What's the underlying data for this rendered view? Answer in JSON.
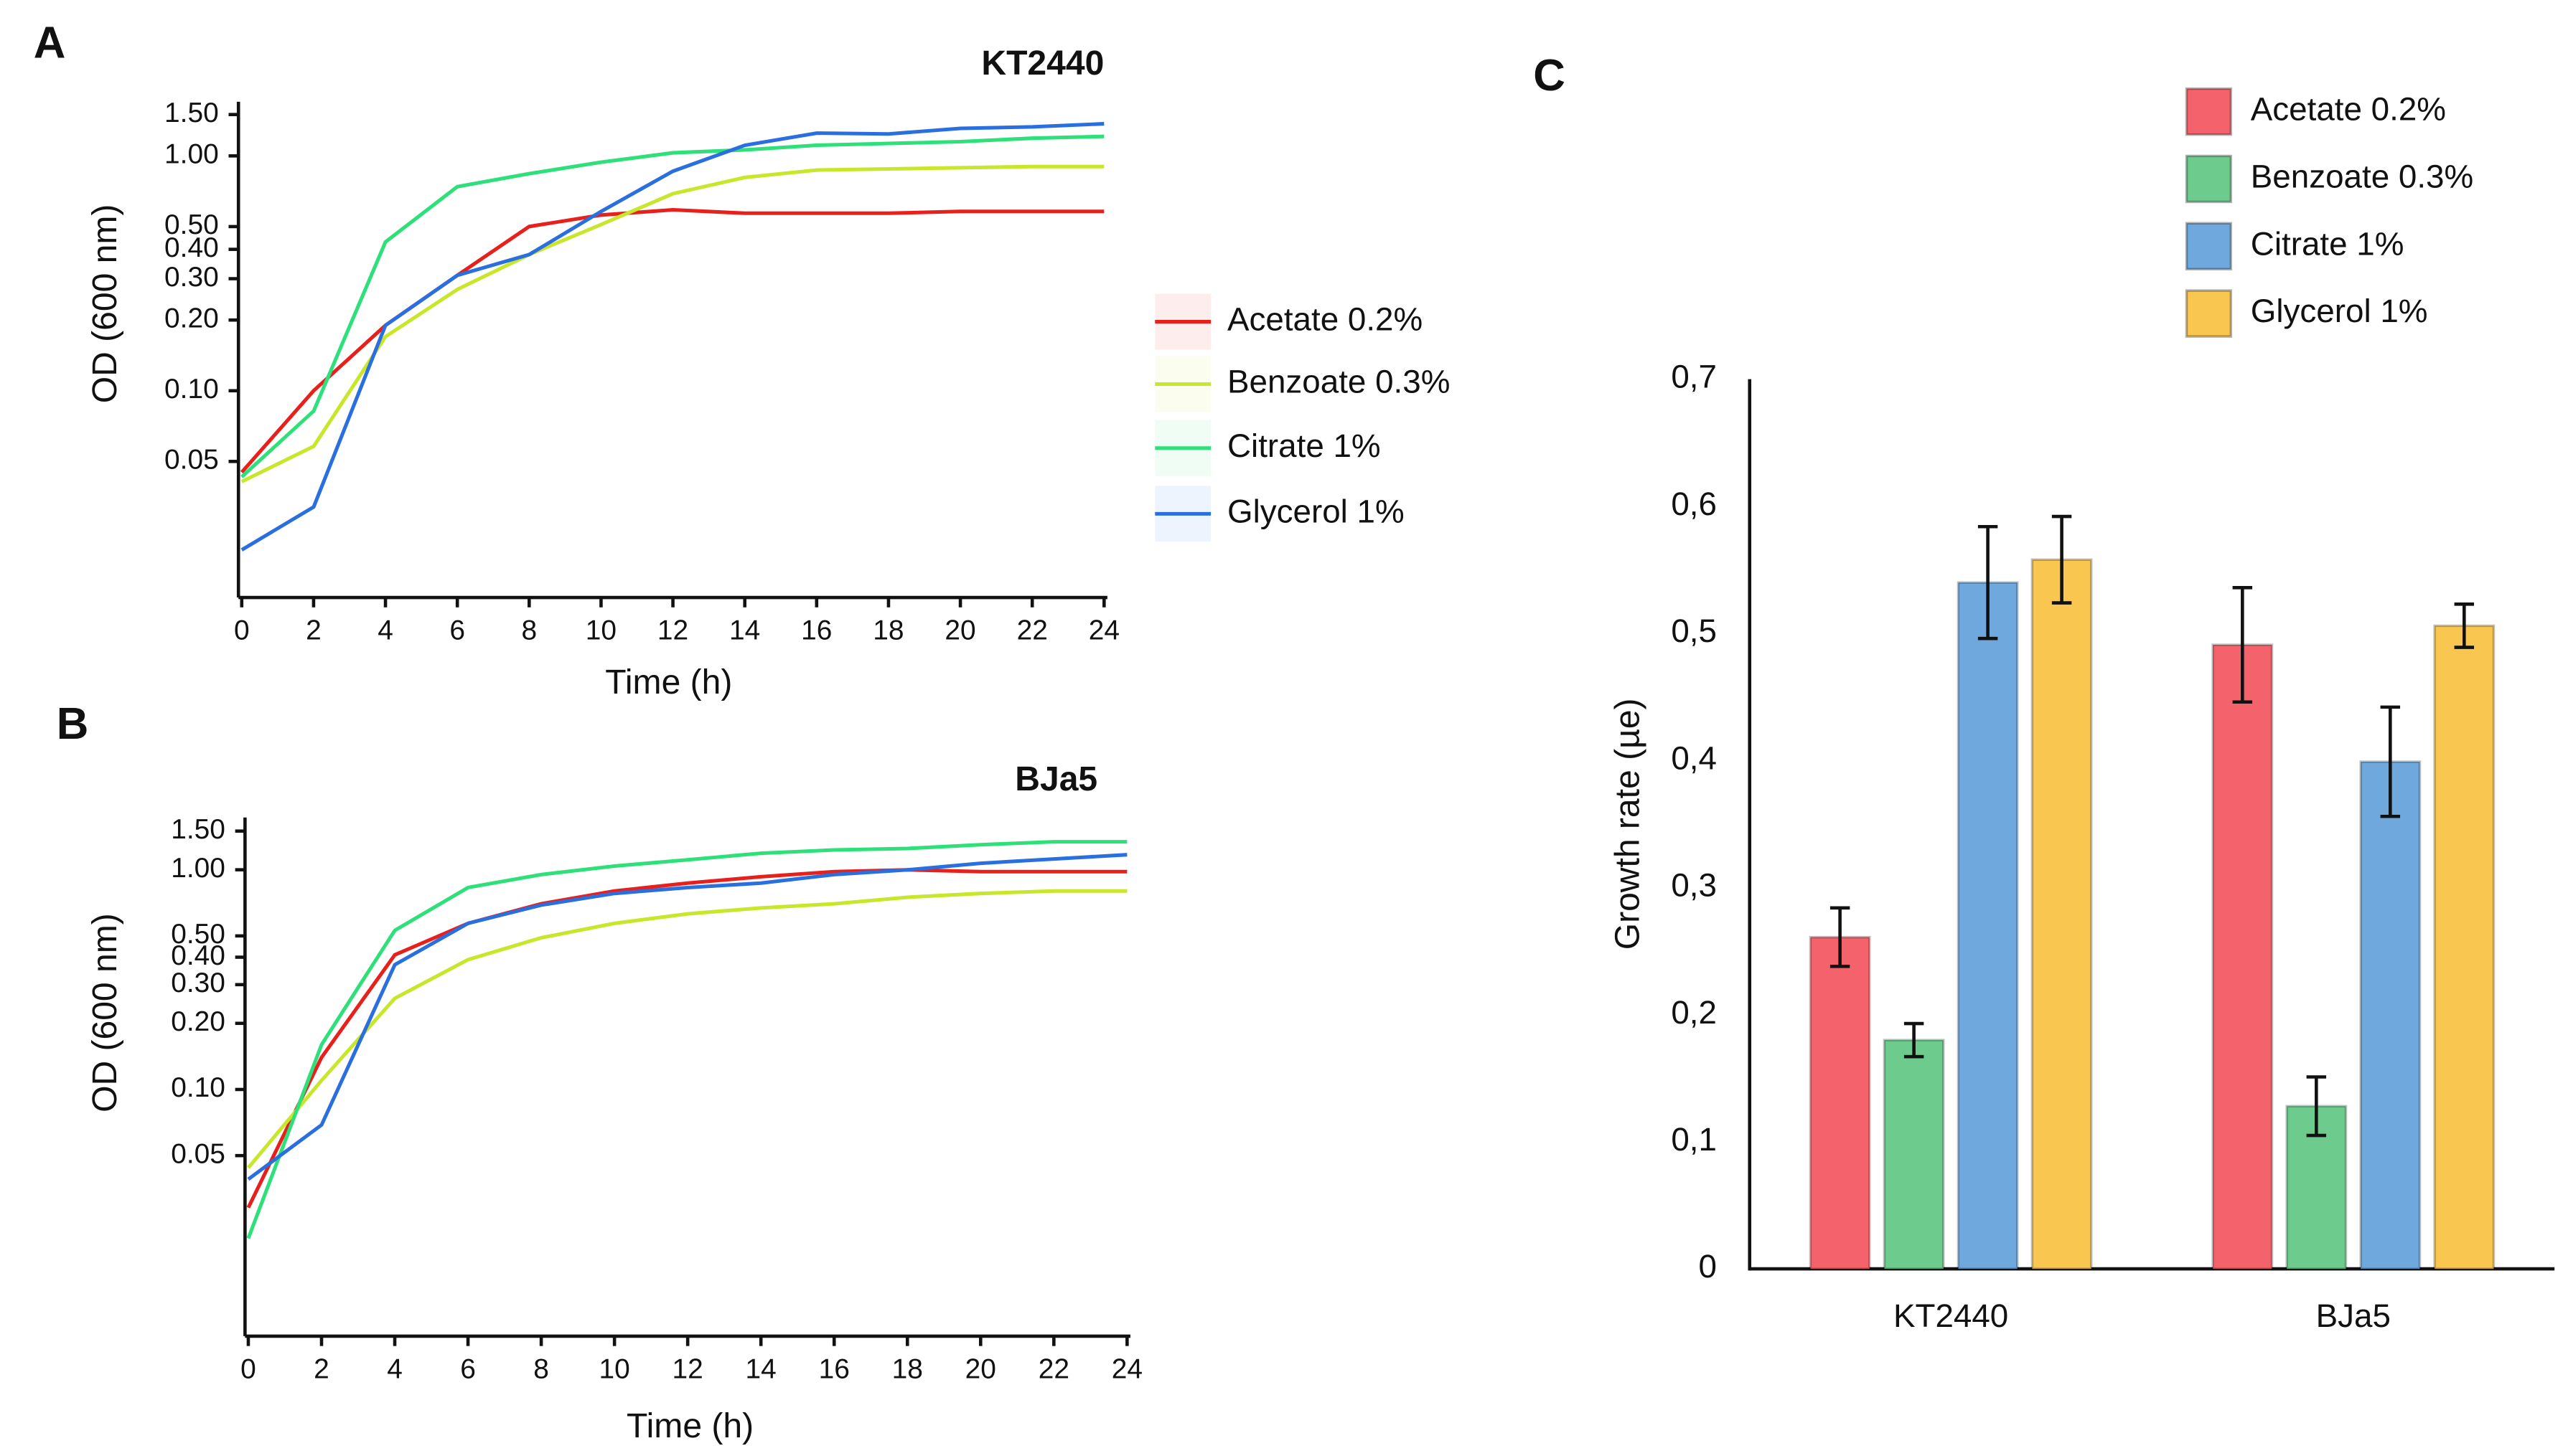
{
  "chart_data": [
    {
      "type": "line",
      "panel_label": "A",
      "title": "KT2440",
      "xlabel": "Time (h)",
      "ylabel": "OD (600 nm)",
      "log_scale": true,
      "legend": true,
      "x": [
        0,
        2,
        4,
        6,
        8,
        10,
        12,
        14,
        16,
        18,
        20,
        22,
        24
      ],
      "xlim": [
        0,
        24
      ],
      "xticks": [
        0,
        2,
        4,
        6,
        8,
        10,
        12,
        14,
        16,
        18,
        20,
        22,
        24
      ],
      "ylim": [
        0.0136,
        1.7
      ],
      "yticks": [
        {
          "value": 0.05,
          "label": "0.05"
        },
        {
          "value": 0.1,
          "label": "0.10"
        },
        {
          "value": 0.2,
          "label": "0.20"
        },
        {
          "value": 0.3,
          "label": "0.30"
        },
        {
          "value": 0.4,
          "label": "0.40"
        },
        {
          "value": 0.5,
          "label": "0.50"
        },
        {
          "value": 1,
          "label": "1.00"
        },
        {
          "value": 1.5,
          "label": "1.50"
        }
      ],
      "series": [
        {
          "name": "Acetate 0.2%",
          "color": "#e8201c",
          "values": [
            0.045,
            0.1,
            0.19,
            0.31,
            0.5,
            0.56,
            0.59,
            0.57,
            0.57,
            0.57,
            0.58,
            0.58,
            0.58
          ]
        },
        {
          "name": "Benzoate 0.3%",
          "color": "#c8e62a",
          "values": [
            0.041,
            0.058,
            0.17,
            0.27,
            0.38,
            0.51,
            0.69,
            0.81,
            0.87,
            0.88,
            0.89,
            0.9,
            0.9
          ]
        },
        {
          "name": "Citrate 1%",
          "color": "#2ee07a",
          "values": [
            0.043,
            0.082,
            0.43,
            0.74,
            0.84,
            0.94,
            1.03,
            1.06,
            1.11,
            1.13,
            1.15,
            1.19,
            1.21
          ]
        },
        {
          "name": "Glycerol 1%",
          "color": "#2a6fe0",
          "values": [
            0.021,
            0.032,
            0.19,
            0.31,
            0.38,
            0.58,
            0.86,
            1.11,
            1.25,
            1.24,
            1.31,
            1.33,
            1.37
          ]
        }
      ]
    },
    {
      "type": "line",
      "panel_label": "B",
      "title": "BJa5",
      "xlabel": "Time (h)",
      "ylabel": "OD (600 nm)",
      "log_scale": true,
      "legend": false,
      "x": [
        0,
        2,
        4,
        6,
        8,
        10,
        12,
        14,
        16,
        18,
        20,
        22,
        24
      ],
      "xlim": [
        0,
        24
      ],
      "xticks": [
        0,
        2,
        4,
        6,
        8,
        10,
        12,
        14,
        16,
        18,
        20,
        22,
        24
      ],
      "ylim": [
        0.0078,
        1.73
      ],
      "yticks": [
        {
          "value": 0.05,
          "label": "0.05"
        },
        {
          "value": 0.1,
          "label": "0.10"
        },
        {
          "value": 0.2,
          "label": "0.20"
        },
        {
          "value": 0.3,
          "label": "0.30"
        },
        {
          "value": 0.4,
          "label": "0.40"
        },
        {
          "value": 0.5,
          "label": "0.50"
        },
        {
          "value": 1,
          "label": "1.00"
        },
        {
          "value": 1.5,
          "label": "1.50"
        }
      ],
      "series": [
        {
          "color": "#e8201c",
          "values": [
            0.029,
            0.14,
            0.41,
            0.57,
            0.7,
            0.8,
            0.87,
            0.93,
            0.98,
            1.0,
            0.98,
            0.98,
            0.98
          ]
        },
        {
          "color": "#c8e62a",
          "values": [
            0.044,
            0.11,
            0.26,
            0.39,
            0.49,
            0.57,
            0.63,
            0.67,
            0.7,
            0.75,
            0.78,
            0.8,
            0.8
          ]
        },
        {
          "color": "#2ee07a",
          "values": [
            0.021,
            0.16,
            0.53,
            0.83,
            0.95,
            1.04,
            1.11,
            1.19,
            1.23,
            1.25,
            1.3,
            1.34,
            1.34
          ]
        },
        {
          "color": "#2a6fe0",
          "values": [
            0.039,
            0.069,
            0.37,
            0.57,
            0.69,
            0.78,
            0.83,
            0.87,
            0.95,
            1.0,
            1.07,
            1.12,
            1.17
          ]
        }
      ]
    },
    {
      "type": "bar",
      "panel_label": "C",
      "ylabel": "Growth rate (µe)",
      "legend": true,
      "categories": [
        "KT2440",
        "BJa5"
      ],
      "ylim": [
        0,
        0.7
      ],
      "yticks": [
        0,
        {
          "value": 0.1,
          "label": "0,1"
        },
        {
          "value": 0.2,
          "label": "0,2"
        },
        {
          "value": 0.3,
          "label": "0,3"
        },
        {
          "value": 0.4,
          "label": "0,4"
        },
        {
          "value": 0.5,
          "label": "0,5"
        },
        {
          "value": 0.6,
          "label": "0,6"
        },
        {
          "value": 0.7,
          "label": "0,7"
        }
      ],
      "series": [
        {
          "name": "Acetate 0.2%",
          "color": "#f4636b",
          "values": [
            0.261,
            0.491
          ],
          "errors": [
            0.023,
            0.045
          ]
        },
        {
          "name": "Benzoate 0.3%",
          "color": "#6dcb8e",
          "values": [
            0.18,
            0.128
          ],
          "errors": [
            0.013,
            0.023
          ]
        },
        {
          "name": "Citrate 1%",
          "color": "#6fa8dc",
          "values": [
            0.54,
            0.399
          ],
          "errors": [
            0.044,
            0.043
          ]
        },
        {
          "name": "Glycerol 1%",
          "color": "#f9c64f",
          "values": [
            0.558,
            0.506
          ],
          "errors": [
            0.034,
            0.017
          ]
        }
      ]
    }
  ]
}
